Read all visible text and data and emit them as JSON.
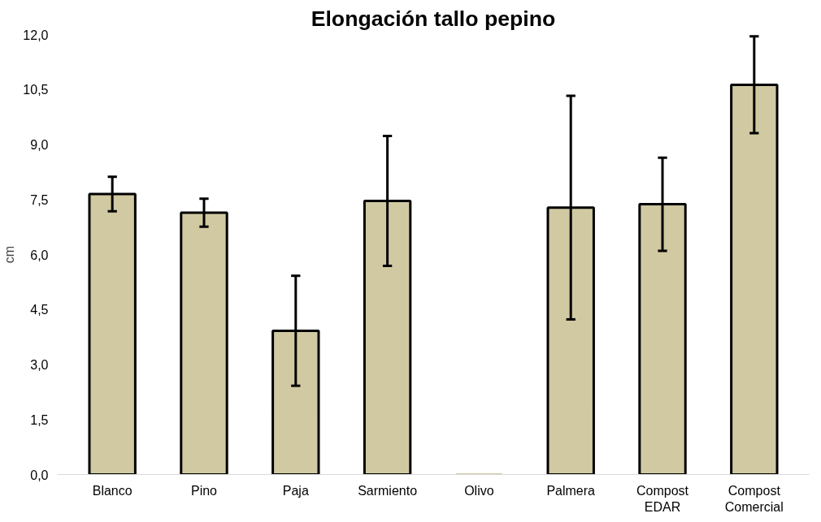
{
  "chart_data": {
    "type": "bar",
    "title": "Elongación tallo pepino",
    "ylabel": "cm",
    "categories": [
      "Blanco",
      "Pino",
      "Paja",
      "Sarmiento",
      "Olivo",
      "Palmera",
      "Compost\nEDAR",
      "Compost\nComercial"
    ],
    "values": [
      7.65,
      7.14,
      3.92,
      7.46,
      0,
      7.28,
      7.37,
      10.63
    ],
    "errors": [
      0.47,
      0.38,
      1.5,
      1.77,
      null,
      3.05,
      1.27,
      1.32
    ],
    "color": "#d0c9a2",
    "ylim": [
      0,
      12
    ],
    "yticks": [
      {
        "value": 0,
        "label": "0,0"
      },
      {
        "value": 1.5,
        "label": "1,5"
      },
      {
        "value": 3,
        "label": "3,0"
      },
      {
        "value": 4.5,
        "label": "4,5"
      },
      {
        "value": 6,
        "label": "6,0"
      },
      {
        "value": 7.5,
        "label": "7,5"
      },
      {
        "value": 9,
        "label": "9,0"
      },
      {
        "value": 10.5,
        "label": "10,5"
      },
      {
        "value": 12,
        "label": "12,0"
      }
    ],
    "grid": false
  }
}
